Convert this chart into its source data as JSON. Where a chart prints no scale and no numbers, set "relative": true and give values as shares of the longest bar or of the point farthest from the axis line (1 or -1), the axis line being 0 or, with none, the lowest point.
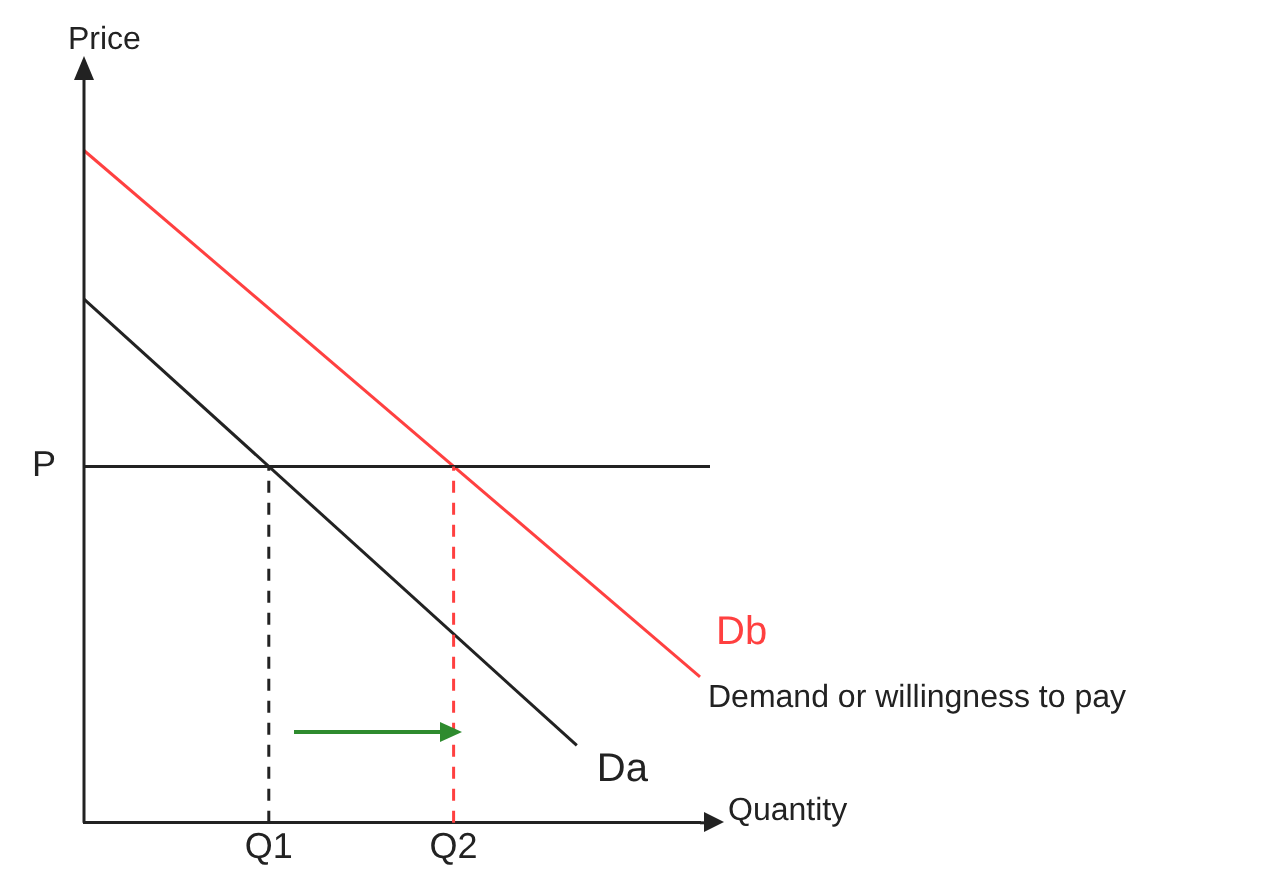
{
  "chart_data": {
    "type": "line",
    "relative": true,
    "xlabel": "Quantity",
    "ylabel": "Price",
    "categories": [
      null,
      null,
      null,
      "Q1",
      null,
      null,
      "Q2",
      null,
      null,
      null,
      null
    ],
    "series": [
      {
        "name": "Db",
        "color": "#ff4040",
        "values": [
          1,
          null,
          null,
          null,
          null,
          null,
          null,
          null,
          null,
          null,
          0.217
        ]
      },
      {
        "name": "Da",
        "color": "#222222",
        "values": [
          0.779,
          null,
          null,
          null,
          null,
          null,
          null,
          null,
          0.115,
          null,
          null
        ]
      }
    ],
    "ref_lines": [
      {
        "axis": "y",
        "value": 0.53,
        "label": "P",
        "color": "#222222"
      },
      {
        "axis": "x",
        "value": "Q1",
        "color": "#222222",
        "line_style": "dashed"
      },
      {
        "axis": "x",
        "value": "Q2",
        "color": "#ff4040",
        "line_style": "dashed"
      }
    ],
    "annotations": [
      "Demand or willingness to pay"
    ],
    "legend": false
  }
}
